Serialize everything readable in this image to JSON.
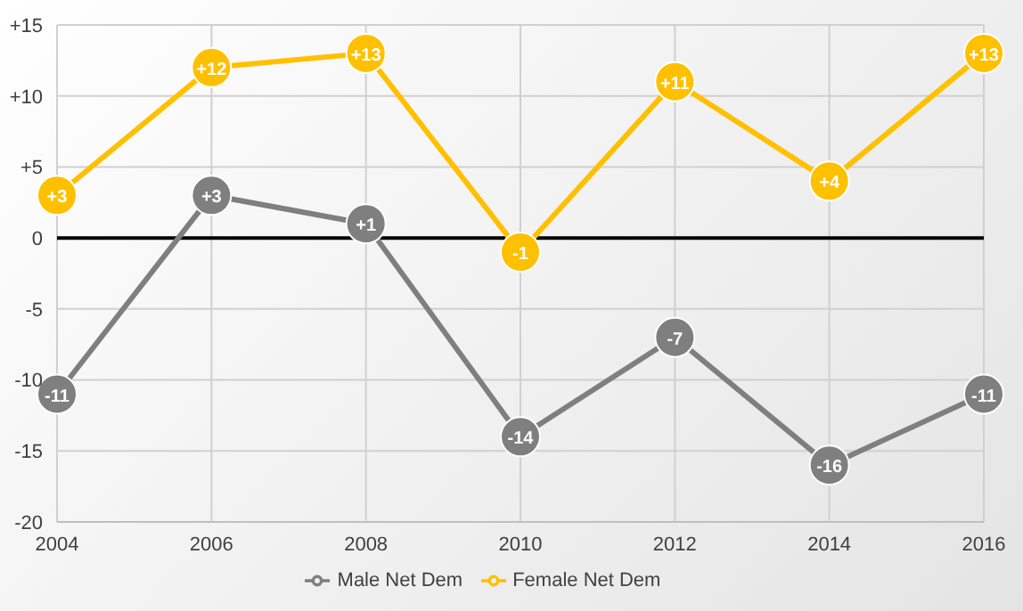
{
  "chart_data": {
    "type": "line",
    "x": [
      2004,
      2006,
      2008,
      2010,
      2012,
      2014,
      2016
    ],
    "series": [
      {
        "name": "Male Net Dem",
        "color": "#7f7f7f",
        "values": [
          -11,
          3,
          1,
          -14,
          -7,
          -16,
          -11
        ],
        "value_labels": [
          "-11",
          "+3",
          "+1",
          "-14",
          "-7",
          "-16",
          "-11"
        ]
      },
      {
        "name": "Female Net Dem",
        "color": "#ffc000",
        "values": [
          3,
          12,
          13,
          -1,
          11,
          4,
          13
        ],
        "value_labels": [
          "+3",
          "+12",
          "+13",
          "-1",
          "+11",
          "+4",
          "+13"
        ]
      }
    ],
    "xlim": [
      2004,
      2016
    ],
    "xticks": [
      2004,
      2006,
      2008,
      2010,
      2012,
      2014,
      2016
    ],
    "ylim": [
      -20,
      15
    ],
    "yticks": [
      {
        "value": -20,
        "label": "-20"
      },
      {
        "value": -15,
        "label": "-15"
      },
      {
        "value": -10,
        "label": "-10"
      },
      {
        "value": -5,
        "label": "-5"
      },
      {
        "value": 0,
        "label": "0"
      },
      {
        "value": 5,
        "label": "+5"
      },
      {
        "value": 10,
        "label": "+10"
      },
      {
        "value": 15,
        "label": "+15"
      }
    ],
    "ref_lines": [
      {
        "axis": "y",
        "value": 0,
        "color": "#000000"
      }
    ],
    "grid": true,
    "legend": "bottom",
    "marker": "circle",
    "line_style": "solid"
  }
}
